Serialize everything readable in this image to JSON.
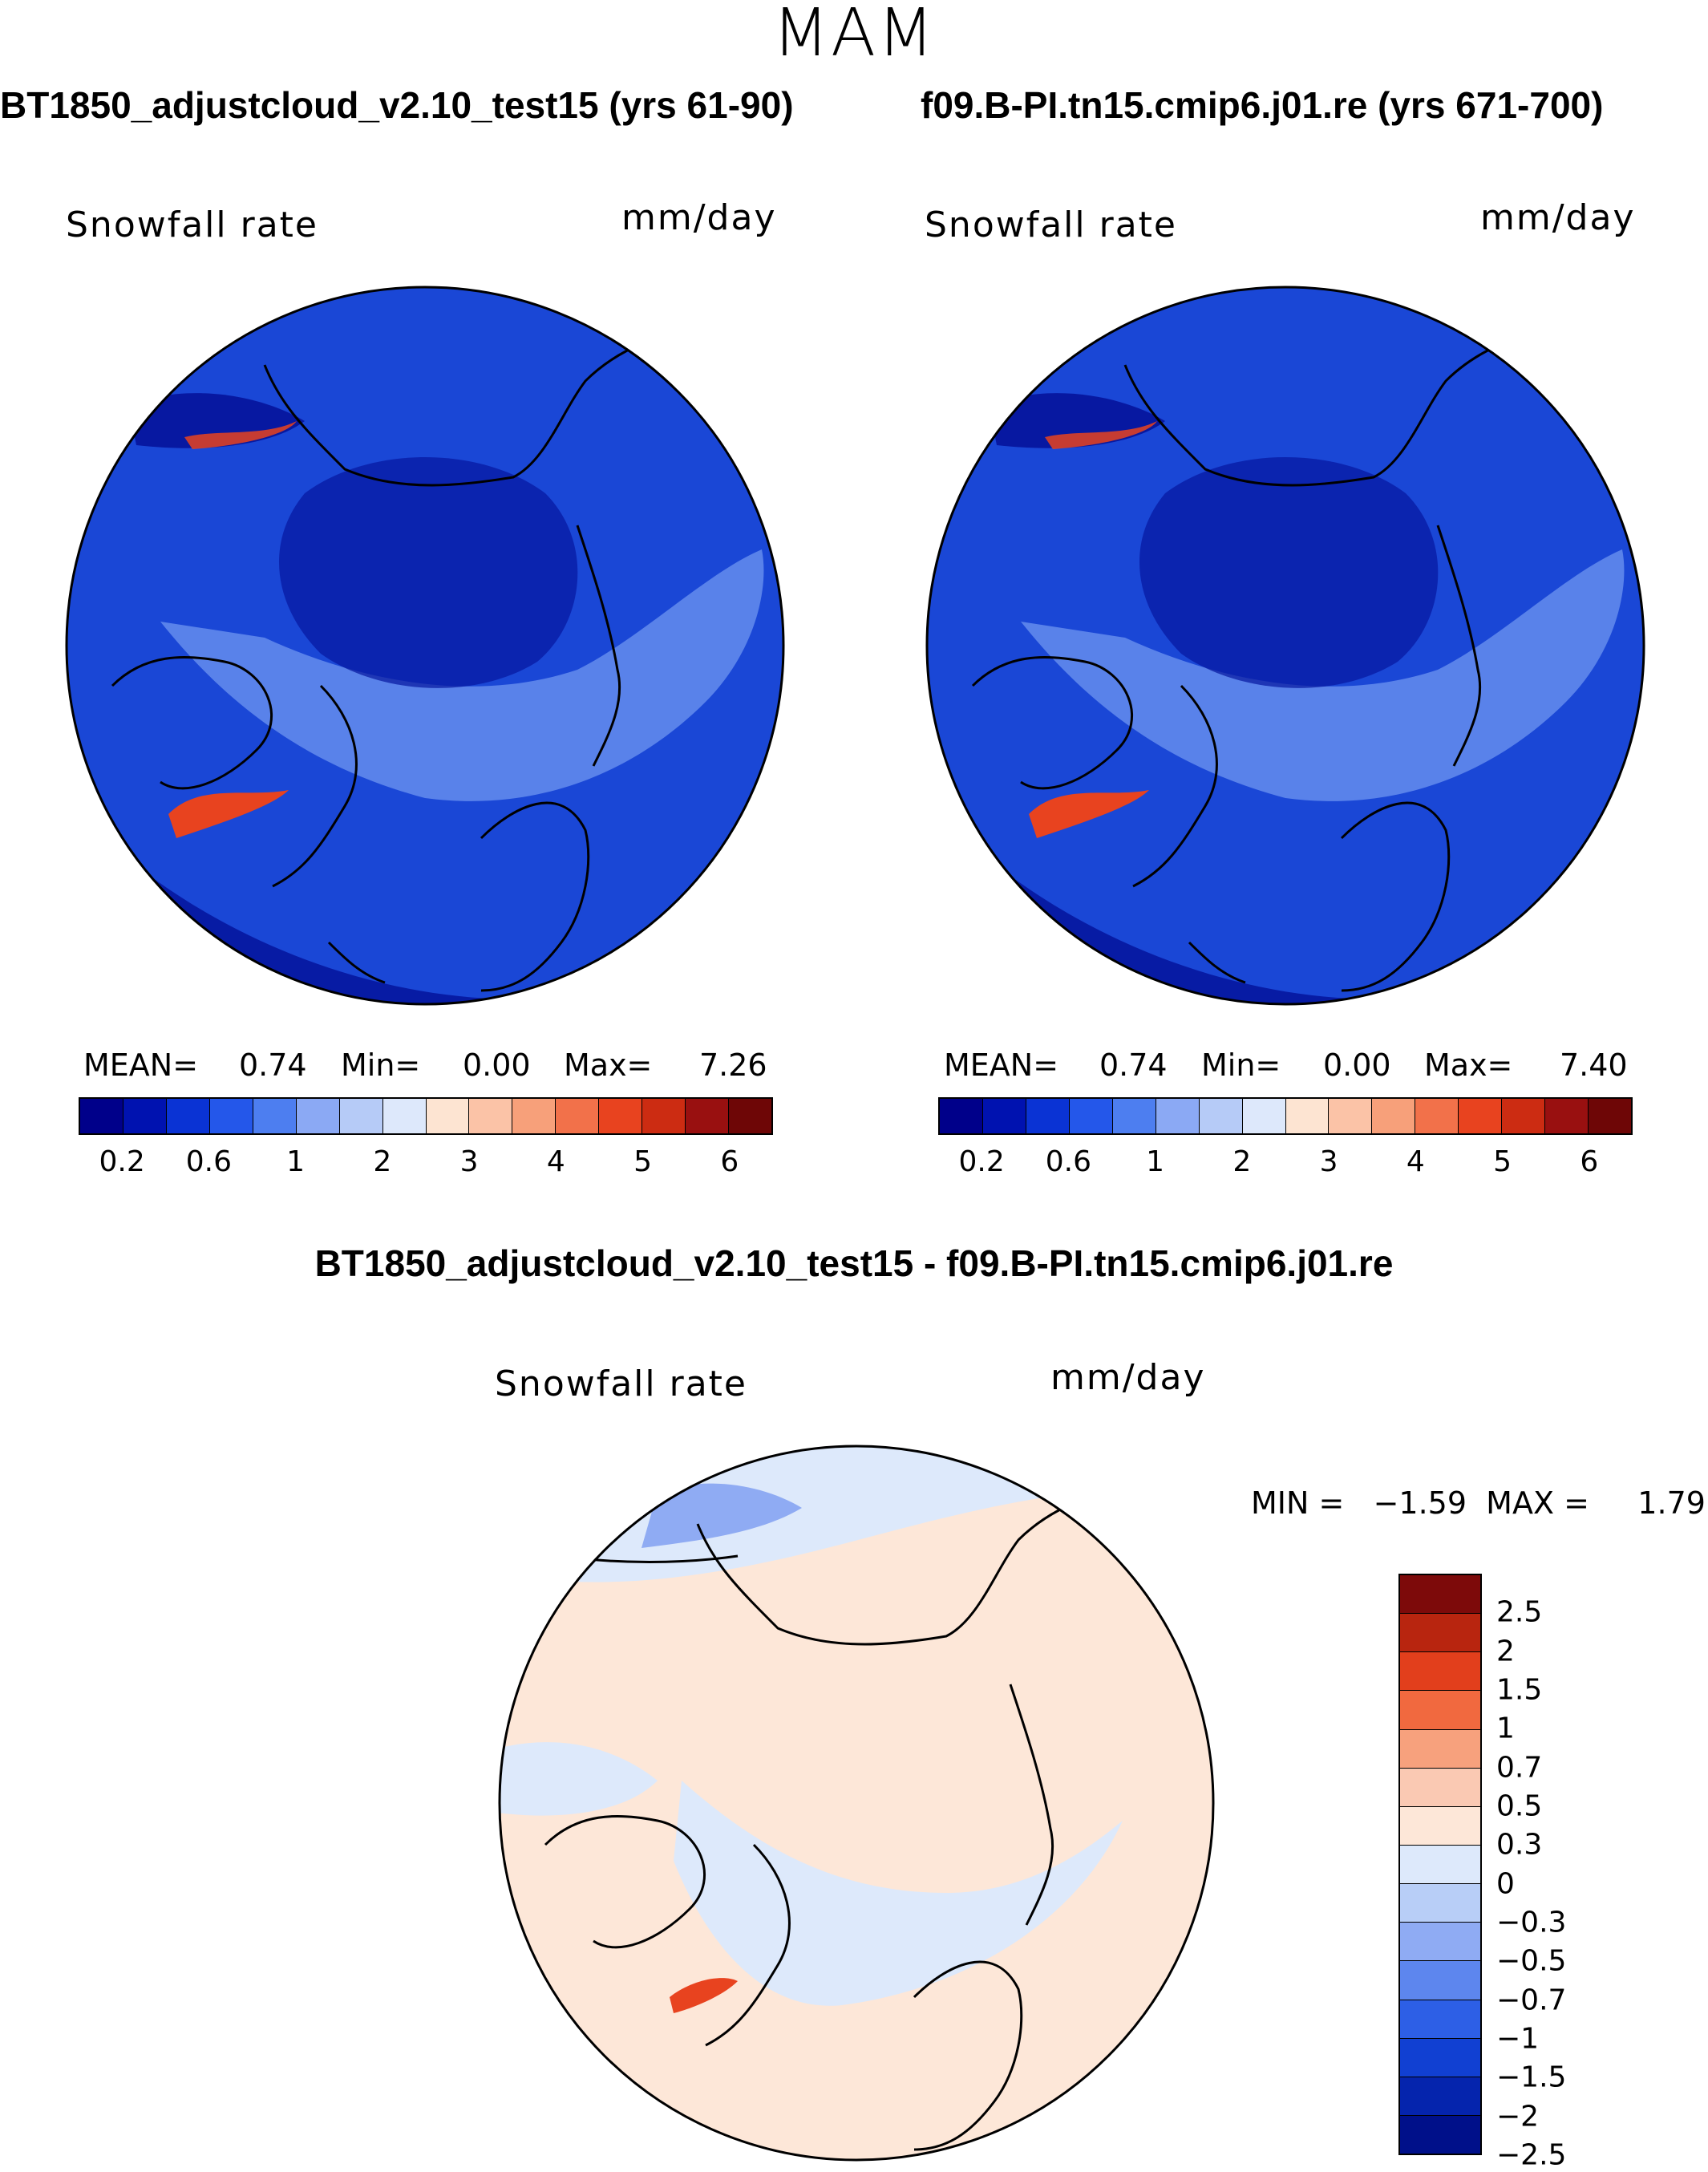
{
  "figure": {
    "season": "MAM",
    "panel_left_title": "BT1850_adjustcloud_v2.10_test15 (yrs 61-90)",
    "panel_right_title": "f09.B-PI.tn15.cmip6.j01.re (yrs 671-700)",
    "diff_title": "BT1850_adjustcloud_v2.10_test15 - f09.B-PI.tn15.cmip6.j01.re",
    "variable": "Snowfall rate",
    "units": "mm/day"
  },
  "panels": {
    "left": {
      "mean_label": "MEAN=",
      "mean_value": "0.74",
      "min_label": "Min=",
      "min_value": "0.00",
      "max_label": "Max=",
      "max_value": "7.26"
    },
    "right": {
      "mean_label": "MEAN=",
      "mean_value": "0.74",
      "min_label": "Min=",
      "min_value": "0.00",
      "max_label": "Max=",
      "max_value": "7.40"
    },
    "diff": {
      "stats_text": "MIN =   −1.59  MAX =     1.79"
    }
  },
  "colorbars": {
    "main": {
      "colors": [
        "#00008a",
        "#0012b0",
        "#0a33d4",
        "#2457ea",
        "#4d7ef0",
        "#8ba9f4",
        "#b6cbf7",
        "#dde8fb",
        "#fde4d2",
        "#fbc3a7",
        "#f7a07a",
        "#f2714a",
        "#e8431f",
        "#cc2c12",
        "#991010",
        "#6e0606"
      ],
      "tick_labels": [
        "0.2",
        "0.6",
        "1",
        "2",
        "3",
        "4",
        "5",
        "6"
      ]
    },
    "diff": {
      "colors_top_to_bottom": [
        "#7d0a0a",
        "#b8250f",
        "#e23f1c",
        "#f1693f",
        "#f7a17d",
        "#fac9b3",
        "#fde7d8",
        "#dde9fb",
        "#b8cef7",
        "#8fabf3",
        "#5d86ee",
        "#2d5fe6",
        "#1140d2",
        "#0524ad",
        "#00108a"
      ],
      "tick_labels": [
        "2.5",
        "2",
        "1.5",
        "1",
        "0.7",
        "0.5",
        "0.3",
        "0",
        "−0.3",
        "−0.5",
        "−0.7",
        "−1",
        "−1.5",
        "−2",
        "−2.5"
      ]
    }
  },
  "map_fields": {
    "abs_base_color": "#1a47d6",
    "abs_deep_color": "#06169e",
    "abs_light_color": "#6f95f0",
    "abs_peak_color": "#e8431f",
    "diff_base_color": "#fde7d8",
    "diff_neg_color": "#dde9fb",
    "diff_neg2_color": "#8fabf3",
    "coast_color": "#000000"
  }
}
